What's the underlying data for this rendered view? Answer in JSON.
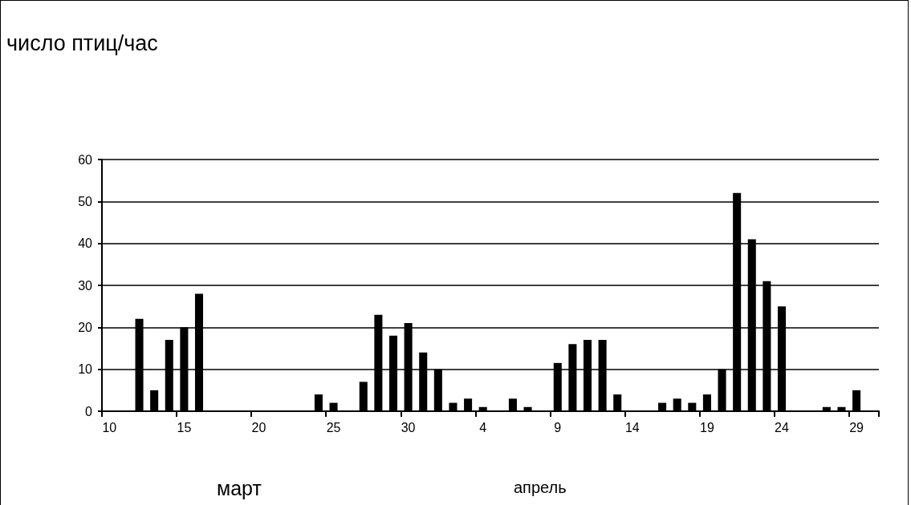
{
  "chart_data": {
    "type": "bar",
    "ylabel": "число птиц/час",
    "categories": [
      "10",
      null,
      null,
      null,
      null,
      "15",
      null,
      null,
      null,
      null,
      "20",
      null,
      null,
      null,
      null,
      "25",
      null,
      null,
      null,
      null,
      "30",
      null,
      null,
      null,
      null,
      "4",
      null,
      null,
      null,
      null,
      "9",
      null,
      null,
      null,
      null,
      "14",
      null,
      null,
      null,
      null,
      "19",
      null,
      null,
      null,
      null,
      "24",
      null,
      null,
      null,
      null,
      "29",
      null
    ],
    "values": [
      0,
      0,
      22,
      5,
      17,
      20,
      28,
      0,
      0,
      0,
      0,
      0,
      0,
      0,
      4,
      2,
      0,
      7,
      23,
      18,
      21,
      14,
      10,
      2,
      3,
      1,
      0,
      3,
      1,
      0,
      11.5,
      16,
      17,
      17,
      4,
      0,
      0,
      2,
      3,
      2,
      4,
      10,
      52,
      41,
      31,
      25,
      0,
      0,
      1,
      1,
      5,
      0
    ],
    "color": "#000000",
    "ylim": [
      0,
      60
    ],
    "yticks": [
      0,
      10,
      20,
      30,
      40,
      50,
      60
    ],
    "grid": "y",
    "annotations": [
      "март",
      "апрель"
    ]
  }
}
